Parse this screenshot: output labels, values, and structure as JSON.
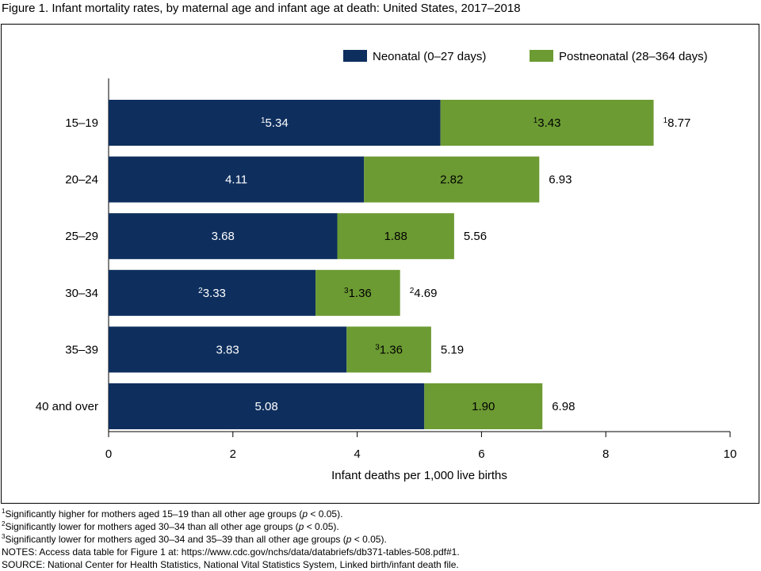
{
  "chart_data": {
    "type": "stacked-barh",
    "title": "Figure 1. Infant mortality rates, by maternal age and infant age at death: United States, 2017–2018",
    "xlabel": "Infant deaths per 1,000 live births",
    "categories": [
      "15–19",
      "20–24",
      "25–29",
      "30–34",
      "35–39",
      "40 and over"
    ],
    "series": [
      {
        "name": "Neonatal (0–27 days)",
        "color": "#0e2f5e",
        "values": [
          5.34,
          4.11,
          3.68,
          3.33,
          3.83,
          5.08
        ],
        "notes": [
          "1",
          null,
          null,
          "2",
          null,
          null
        ]
      },
      {
        "name": "Postneonatal (28–364 days)",
        "color": "#6c9b33",
        "values": [
          3.43,
          2.82,
          1.88,
          1.36,
          1.36,
          1.9
        ],
        "value_labels": [
          "3.43",
          "2.82",
          "1.88",
          "1.36",
          "1.36",
          "1.90"
        ],
        "notes": [
          "1",
          null,
          null,
          "3",
          "3",
          null
        ]
      }
    ],
    "totals": [
      8.77,
      6.93,
      5.56,
      4.69,
      5.19,
      6.98
    ],
    "total_notes": [
      "1",
      null,
      null,
      "2",
      null,
      null
    ],
    "xlim": [
      0,
      10
    ],
    "xticks": [
      0,
      2,
      4,
      6,
      8,
      10
    ],
    "legend": "top-right"
  },
  "footnotes": [
    {
      "marker": "1",
      "text": [
        "Significantly higher for mothers aged 15–19 than all other age groups (",
        "p",
        " < 0.05)."
      ]
    },
    {
      "marker": "2",
      "text": [
        "Significantly lower for mothers aged 30–34 than all other age groups (",
        "p",
        " < 0.05)."
      ]
    },
    {
      "marker": "3",
      "text": [
        "Significantly lower for mothers aged 30–34 and 35–39 than all other age groups (",
        "p",
        " < 0.05)."
      ]
    }
  ],
  "notes": "NOTES: Access data table for Figure 1 at: https://www.cdc.gov/nchs/data/databriefs/db371-tables-508.pdf#1.",
  "source": "SOURCE: National Center for Health Statistics, National Vital Statistics System, Linked birth/infant death file."
}
